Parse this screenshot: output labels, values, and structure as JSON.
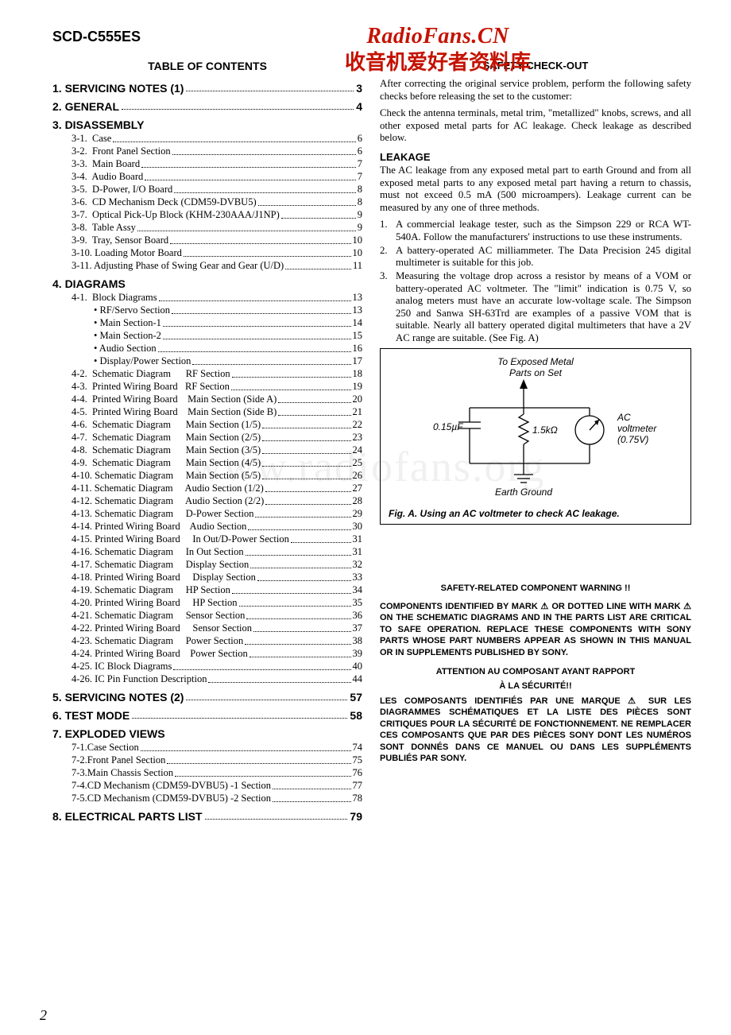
{
  "model": "SCD-C555ES",
  "brand_latin": "RadioFans.CN",
  "brand_cjk": "收音机爱好者资料库",
  "watermark": "www.radiofans.org",
  "page_number": "2",
  "toc": {
    "title": "TABLE OF CONTENTS",
    "sections": [
      {
        "head": "1. SERVICING NOTES (1)",
        "page": "3",
        "items": []
      },
      {
        "head": "2. GENERAL",
        "page": "4",
        "items": []
      },
      {
        "head": "3. DISASSEMBLY",
        "page": "",
        "items": [
          {
            "label": "3-1.  Case",
            "page": "6"
          },
          {
            "label": "3-2.  Front Panel Section",
            "page": "6"
          },
          {
            "label": "3-3.  Main Board",
            "page": "7"
          },
          {
            "label": "3-4.  Audio Board",
            "page": "7"
          },
          {
            "label": "3-5.  D-Power, I/O Board",
            "page": "8"
          },
          {
            "label": "3-6.  CD Mechanism Deck (CDM59-DVBU5)",
            "page": "8"
          },
          {
            "label": "3-7.  Optical Pick-Up Block (KHM-230AAA/J1NP)",
            "page": "9"
          },
          {
            "label": "3-8.  Table Assy",
            "page": "9"
          },
          {
            "label": "3-9.  Tray, Sensor Board",
            "page": "10"
          },
          {
            "label": "3-10. Loading Motor Board",
            "page": "10"
          },
          {
            "label": "3-11. Adjusting Phase of Swing Gear and Gear (U/D)",
            "page": "11"
          }
        ]
      },
      {
        "head": "4. DIAGRAMS",
        "page": "",
        "items": [
          {
            "label": "4-1.  Block Diagrams",
            "page": "13",
            "subs": [
              {
                "label": "• RF/Servo Section",
                "page": "13"
              },
              {
                "label": "• Main Section-1",
                "page": "14"
              },
              {
                "label": "• Main Section-2",
                "page": "15"
              },
              {
                "label": "• Audio Section",
                "page": "16"
              },
              {
                "label": "• Display/Power Section",
                "page": "17"
              }
            ]
          },
          {
            "label": "4-2.  Schematic Diagram      RF Section",
            "page": "18"
          },
          {
            "label": "4-3.  Printed Wiring Board   RF Section",
            "page": "19"
          },
          {
            "label": "4-4.  Printed Wiring Board    Main Section (Side A)",
            "page": "20"
          },
          {
            "label": "4-5.  Printed Wiring Board    Main Section (Side B)",
            "page": "21"
          },
          {
            "label": "4-6.  Schematic Diagram      Main Section (1/5)",
            "page": "22"
          },
          {
            "label": "4-7.  Schematic Diagram      Main Section (2/5)",
            "page": "23"
          },
          {
            "label": "4-8.  Schematic Diagram      Main Section (3/5)",
            "page": "24"
          },
          {
            "label": "4-9.  Schematic Diagram      Main Section (4/5)",
            "page": "25"
          },
          {
            "label": "4-10. Schematic Diagram     Main Section (5/5)",
            "page": "26"
          },
          {
            "label": "4-11. Schematic Diagram     Audio Section (1/2)",
            "page": "27"
          },
          {
            "label": "4-12. Schematic Diagram     Audio Section (2/2)",
            "page": "28"
          },
          {
            "label": "4-13. Schematic Diagram     D-Power Section",
            "page": "29"
          },
          {
            "label": "4-14. Printed Wiring Board    Audio Section",
            "page": "30"
          },
          {
            "label": "4-15. Printed Wiring Board     In Out/D-Power Section",
            "page": "31"
          },
          {
            "label": "4-16. Schematic Diagram     In Out Section",
            "page": "31"
          },
          {
            "label": "4-17. Schematic Diagram     Display Section",
            "page": "32"
          },
          {
            "label": "4-18. Printed Wiring Board     Display Section",
            "page": "33"
          },
          {
            "label": "4-19. Schematic Diagram     HP Section",
            "page": "34"
          },
          {
            "label": "4-20. Printed Wiring Board     HP Section",
            "page": "35"
          },
          {
            "label": "4-21. Schematic Diagram     Sensor Section",
            "page": "36"
          },
          {
            "label": "4-22. Printed Wiring Board     Sensor Section",
            "page": "37"
          },
          {
            "label": "4-23. Schematic Diagram     Power Section",
            "page": "38"
          },
          {
            "label": "4-24. Printed Wiring Board    Power Section",
            "page": "39"
          },
          {
            "label": "4-25. IC Block Diagrams",
            "page": "40"
          },
          {
            "label": "4-26. IC Pin Function Description",
            "page": "44"
          }
        ]
      },
      {
        "head": "5. SERVICING NOTES (2)",
        "page": "57",
        "items": []
      },
      {
        "head": "6. TEST MODE",
        "page": "58",
        "items": []
      },
      {
        "head": "7. EXPLODED VIEWS",
        "page": "",
        "items": [
          {
            "label": "7-1.Case Section",
            "page": "74"
          },
          {
            "label": "7-2.Front Panel Section",
            "page": "75"
          },
          {
            "label": "7-3.Main Chassis Section",
            "page": "76"
          },
          {
            "label": "7-4.CD Mechanism (CDM59-DVBU5) -1 Section",
            "page": "77"
          },
          {
            "label": "7-5.CD Mechanism (CDM59-DVBU5) -2 Section",
            "page": "78"
          }
        ]
      },
      {
        "head": "8. ELECTRICAL PARTS LIST",
        "page": "79",
        "items": []
      }
    ]
  },
  "right": {
    "title": "SAFETY  CHECK-OUT",
    "intro1": "After correcting the original service problem, perform the following safety checks before releasing the set to the customer:",
    "intro2": "Check the antenna terminals, metal trim, \"metallized\" knobs, screws, and all other exposed metal parts for AC leakage. Check leakage as described below.",
    "leakage_head": "LEAKAGE",
    "leakage_para": "The AC leakage from any exposed metal part to earth Ground and from all exposed metal parts to any exposed metal part having a return to chassis, must not exceed 0.5 mA (500 microampers). Leakage current can be measured by any one of three methods.",
    "methods": [
      "A commercial leakage tester, such as the Simpson 229 or RCA WT-540A. Follow the manufacturers' instructions to use these instruments.",
      "A battery-operated AC milliammeter. The Data Precision 245 digital multimeter is suitable for this job.",
      "Measuring the voltage drop across a resistor by means of a VOM or battery-operated AC voltmeter. The \"limit\" indication is 0.75 V, so analog meters must have an accurate low-voltage scale. The Simpson 250 and Sanwa SH-63Trd are examples of a passive VOM that is suitable. Nearly all battery operated digital multimeters that have a 2V AC range are suitable. (See Fig. A)"
    ],
    "fig": {
      "top_label1": "To Exposed Metal",
      "top_label2": "Parts on Set",
      "cap_label": "0.15µF",
      "res_label": "1.5kΩ",
      "volt1": "AC",
      "volt2": "voltmeter",
      "volt3": "(0.75V)",
      "earth": "Earth Ground",
      "caption": "Fig. A. Using an AC voltmeter to check AC leakage."
    },
    "warn_head": "SAFETY-RELATED COMPONENT WARNING !!",
    "warn_en": "COMPONENTS IDENTIFIED BY MARK ⚠ OR DOTTED LINE WITH MARK ⚠ ON THE SCHEMATIC DIAGRAMS AND IN THE PARTS LIST ARE CRITICAL TO SAFE OPERATION. REPLACE THESE COMPONENTS WITH SONY PARTS WHOSE PART NUMBERS APPEAR AS SHOWN IN THIS MANUAL OR IN SUPPLEMENTS PUBLISHED BY SONY.",
    "warn_fr_head1": "ATTENTION AU COMPOSANT AYANT RAPPORT",
    "warn_fr_head2": "À LA SÉCURITÉ!!",
    "warn_fr": "LES COMPOSANTS IDENTIFIÉS PAR UNE MARQUE ⚠ SUR LES DIAGRAMMES SCHÉMATIQUES ET LA LISTE DES PIÈCES SONT CRITIQUES POUR LA SÉCURITÉ DE FONCTIONNEMENT. NE REMPLACER CES COMPOSANTS QUE PAR DES PIÈCES SONY DONT LES NUMÉROS SONT DONNÉS DANS CE MANUEL OU DANS LES SUPPLÉMENTS PUBLIÉS PAR SONY."
  }
}
